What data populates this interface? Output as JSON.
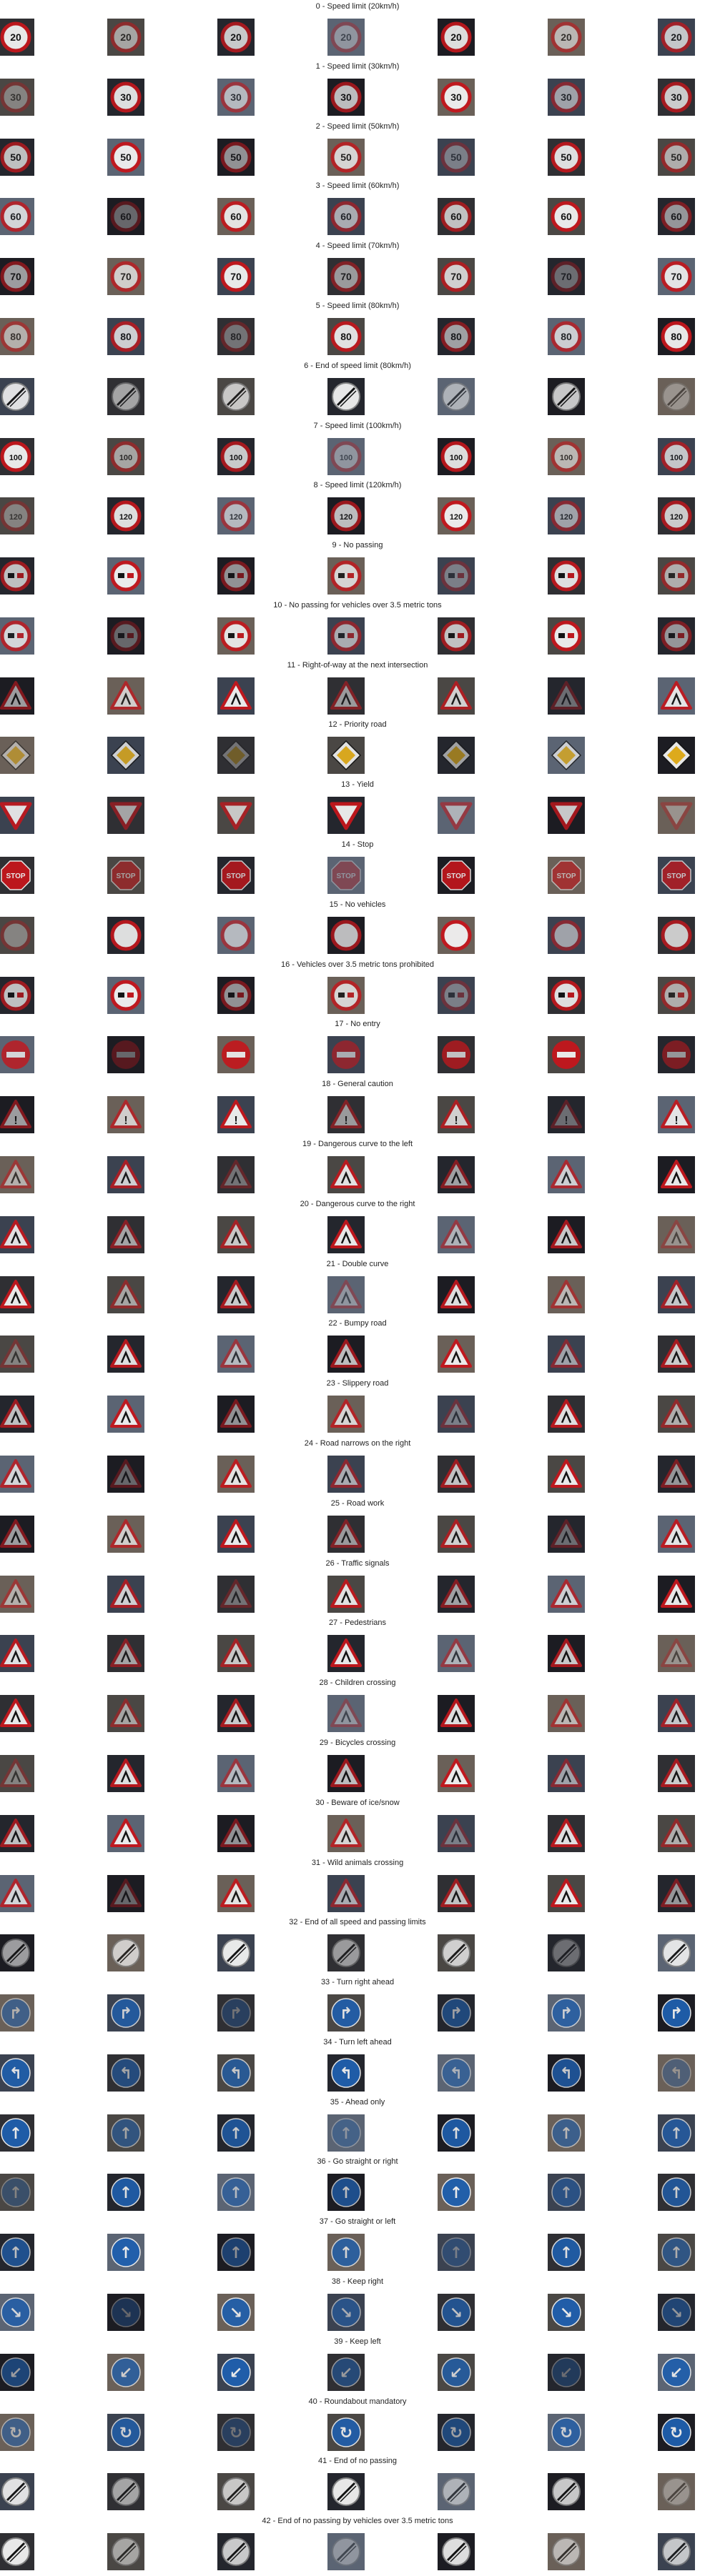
{
  "figure": {
    "thumbs_per_row": 7,
    "classes": [
      {
        "id": 0,
        "title": "0 - Speed limit (20km/h)",
        "sign": "speed",
        "text": "20"
      },
      {
        "id": 1,
        "title": "1 - Speed limit (30km/h)",
        "sign": "speed",
        "text": "30"
      },
      {
        "id": 2,
        "title": "2 - Speed limit (50km/h)",
        "sign": "speed",
        "text": "50"
      },
      {
        "id": 3,
        "title": "3 - Speed limit (60km/h)",
        "sign": "speed",
        "text": "60"
      },
      {
        "id": 4,
        "title": "4 - Speed limit (70km/h)",
        "sign": "speed",
        "text": "70"
      },
      {
        "id": 5,
        "title": "5 - Speed limit (80km/h)",
        "sign": "speed",
        "text": "80"
      },
      {
        "id": 6,
        "title": "6 - End of speed limit (80km/h)",
        "sign": "end",
        "text": "80"
      },
      {
        "id": 7,
        "title": "7 - Speed limit (100km/h)",
        "sign": "speed",
        "text": "100"
      },
      {
        "id": 8,
        "title": "8 - Speed limit (120km/h)",
        "sign": "speed",
        "text": "120"
      },
      {
        "id": 9,
        "title": "9 - No passing",
        "sign": "nopass",
        "text": ""
      },
      {
        "id": 10,
        "title": "10 - No passing for vehicles over 3.5 metric tons",
        "sign": "nopass",
        "text": ""
      },
      {
        "id": 11,
        "title": "11 - Right-of-way at the next intersection",
        "sign": "warning",
        "text": ""
      },
      {
        "id": 12,
        "title": "12 - Priority road",
        "sign": "priority",
        "text": ""
      },
      {
        "id": 13,
        "title": "13 - Yield",
        "sign": "yield",
        "text": ""
      },
      {
        "id": 14,
        "title": "14 - Stop",
        "sign": "stop",
        "text": "STOP"
      },
      {
        "id": 15,
        "title": "15 - No vehicles",
        "sign": "novehicles",
        "text": ""
      },
      {
        "id": 16,
        "title": "16 - Vehicles over 3.5 metric tons prohibited",
        "sign": "nopass",
        "text": ""
      },
      {
        "id": 17,
        "title": "17 - No entry",
        "sign": "noentry",
        "text": ""
      },
      {
        "id": 18,
        "title": "18 - General caution",
        "sign": "warning",
        "text": "!"
      },
      {
        "id": 19,
        "title": "19 - Dangerous curve to the left",
        "sign": "warning",
        "text": ""
      },
      {
        "id": 20,
        "title": "20 - Dangerous curve to the right",
        "sign": "warning",
        "text": ""
      },
      {
        "id": 21,
        "title": "21 - Double curve",
        "sign": "warning",
        "text": ""
      },
      {
        "id": 22,
        "title": "22 - Bumpy road",
        "sign": "warning",
        "text": ""
      },
      {
        "id": 23,
        "title": "23 - Slippery road",
        "sign": "warning",
        "text": ""
      },
      {
        "id": 24,
        "title": "24 - Road narrows on the right",
        "sign": "warning",
        "text": ""
      },
      {
        "id": 25,
        "title": "25 - Road work",
        "sign": "warning",
        "text": ""
      },
      {
        "id": 26,
        "title": "26 - Traffic signals",
        "sign": "warning",
        "text": ""
      },
      {
        "id": 27,
        "title": "27 - Pedestrians",
        "sign": "warning",
        "text": ""
      },
      {
        "id": 28,
        "title": "28 - Children crossing",
        "sign": "warning",
        "text": ""
      },
      {
        "id": 29,
        "title": "29 - Bicycles crossing",
        "sign": "warning",
        "text": ""
      },
      {
        "id": 30,
        "title": "30 - Beware of ice/snow",
        "sign": "warning",
        "text": ""
      },
      {
        "id": 31,
        "title": "31 - Wild animals crossing",
        "sign": "warning",
        "text": ""
      },
      {
        "id": 32,
        "title": "32 - End of all speed and passing limits",
        "sign": "end",
        "text": ""
      },
      {
        "id": 33,
        "title": "33 - Turn right ahead",
        "sign": "mandatory",
        "text": "↱"
      },
      {
        "id": 34,
        "title": "34 - Turn left ahead",
        "sign": "mandatory",
        "text": "↰"
      },
      {
        "id": 35,
        "title": "35 - Ahead only",
        "sign": "mandatory",
        "text": "↑"
      },
      {
        "id": 36,
        "title": "36 - Go straight or right",
        "sign": "mandatory",
        "text": "↑"
      },
      {
        "id": 37,
        "title": "37 - Go straight or left",
        "sign": "mandatory",
        "text": "↑"
      },
      {
        "id": 38,
        "title": "38 - Keep right",
        "sign": "mandatory",
        "text": "↘"
      },
      {
        "id": 39,
        "title": "39 - Keep left",
        "sign": "mandatory",
        "text": "↙"
      },
      {
        "id": 40,
        "title": "40 - Roundabout mandatory",
        "sign": "mandatory",
        "text": "↻"
      },
      {
        "id": 41,
        "title": "41 - End of no passing",
        "sign": "end",
        "text": ""
      },
      {
        "id": 42,
        "title": "42 - End of no passing by vehicles over 3.5 metric tons",
        "sign": "end",
        "text": ""
      }
    ]
  },
  "colors": {
    "background": "#ffffff",
    "title_text": "#222222",
    "sign_red": "#c4161c",
    "sign_blue": "#1f5fae",
    "sign_yellow": "#e8b21c",
    "sign_white": "#f2f2f2",
    "sign_black": "#111111"
  },
  "thumb_backgrounds": [
    "#2f2f33",
    "#4a4744",
    "#24262d",
    "#5b6473",
    "#1c1c22",
    "#6a6058",
    "#3b4250"
  ]
}
